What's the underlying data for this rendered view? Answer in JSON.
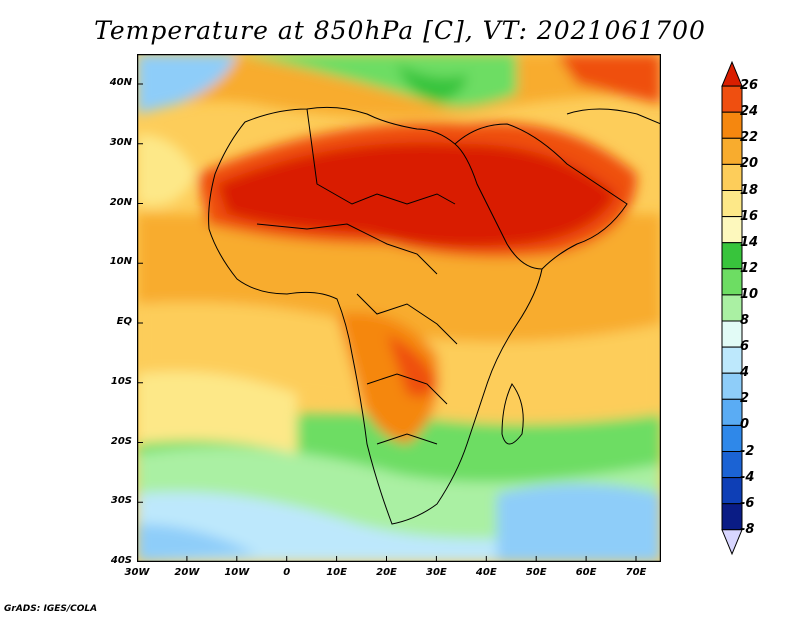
{
  "title": "Temperature at 850hPa [C], VT: 2021061700",
  "credit": "GrADS: IGES/COLA",
  "map": {
    "lon_range": [
      -30,
      75
    ],
    "lat_range": [
      -40,
      45
    ],
    "lat_ticks": [
      "40N",
      "30N",
      "20N",
      "10N",
      "EQ",
      "10S",
      "20S",
      "30S",
      "40S"
    ],
    "lon_ticks": [
      "30W",
      "20W",
      "10W",
      "0",
      "10E",
      "20E",
      "30E",
      "40E",
      "50E",
      "60E",
      "70E"
    ]
  },
  "colorbar": {
    "labels": [
      "26",
      "24",
      "22",
      "20",
      "18",
      "16",
      "14",
      "12",
      "10",
      "8",
      "6",
      "4",
      "2",
      "0",
      "-2",
      "-4",
      "-6",
      "-8"
    ],
    "colors": [
      "#d91e00",
      "#ef4f10",
      "#f5870f",
      "#f8ac2e",
      "#fdcd5a",
      "#fde888",
      "#fdf8bd",
      "#38c43c",
      "#6ddd63",
      "#aaf0a3",
      "#e2fbf6",
      "#bde8fc",
      "#8ecdf9",
      "#5aacf4",
      "#2f88e9",
      "#1b63d4",
      "#0e3fb6",
      "#0a1c85",
      "#d8d6ff"
    ]
  }
}
